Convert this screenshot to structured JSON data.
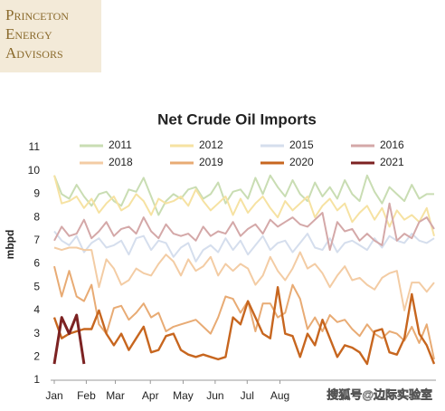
{
  "logo": {
    "lines": [
      "Princeton",
      "Energy",
      "Advisors"
    ]
  },
  "watermark": "搜狐号@边际实验室",
  "chart_data": {
    "type": "line",
    "title": "Net Crude Oil Imports",
    "y_label": "mbpd",
    "x": [
      1,
      2,
      3,
      4,
      5,
      6,
      7,
      8,
      9,
      10,
      11,
      12,
      13,
      14,
      15,
      16,
      17,
      18,
      19,
      20,
      21,
      22,
      23,
      24,
      25,
      26,
      27,
      28,
      29,
      30,
      31,
      32,
      33,
      34,
      35,
      36,
      37,
      38,
      39,
      40,
      41,
      42,
      43,
      44,
      45,
      46,
      47,
      48,
      49,
      50,
      51,
      52
    ],
    "xlim": [
      1,
      52
    ],
    "xticks": [
      {
        "value": 1,
        "label": "Jan"
      },
      {
        "value": 5.3,
        "label": "Feb"
      },
      {
        "value": 9.2,
        "label": "Mar"
      },
      {
        "value": 13.9,
        "label": "Apr"
      },
      {
        "value": 18.3,
        "label": "May"
      },
      {
        "value": 22.6,
        "label": "Jun"
      },
      {
        "value": 26.9,
        "label": "Jul"
      },
      {
        "value": 31.3,
        "label": "Aug"
      }
    ],
    "ylim": [
      1,
      11
    ],
    "yticks": [
      1,
      2,
      3,
      4,
      5,
      6,
      7,
      8,
      9,
      10,
      11
    ],
    "series": [
      {
        "name": "2011",
        "color": "#c9ddb3",
        "values": [
          9.8,
          9.0,
          8.8,
          9.4,
          8.9,
          8.5,
          9.0,
          9.1,
          8.7,
          8.5,
          9.2,
          9.1,
          9.7,
          8.9,
          8.1,
          8.7,
          9.0,
          8.8,
          9.2,
          9.3,
          8.8,
          9.0,
          9.5,
          8.6,
          9.1,
          9.2,
          8.8,
          9.7,
          9.0,
          9.8,
          9.3,
          8.9,
          9.6,
          9.0,
          8.7,
          9.5,
          8.9,
          9.3,
          8.8,
          9.6,
          9.0,
          8.7,
          9.8,
          9.1,
          8.6,
          9.3,
          9.0,
          8.7,
          9.4,
          8.8,
          9.0,
          9.0
        ]
      },
      {
        "name": "2012",
        "color": "#f6e2a2",
        "values": [
          9.8,
          8.6,
          8.7,
          8.9,
          8.4,
          8.8,
          8.2,
          8.6,
          8.9,
          8.3,
          8.5,
          9.0,
          8.7,
          8.1,
          8.8,
          8.6,
          8.7,
          8.9,
          8.5,
          9.2,
          8.7,
          8.3,
          8.6,
          8.9,
          8.1,
          8.8,
          8.2,
          8.6,
          8.9,
          8.4,
          8.0,
          8.7,
          8.3,
          8.6,
          8.9,
          8.0,
          8.5,
          8.8,
          8.3,
          8.6,
          7.8,
          8.2,
          8.5,
          7.9,
          8.4,
          7.6,
          8.3,
          7.9,
          8.1,
          7.8,
          8.4,
          7.2
        ]
      },
      {
        "name": "2015",
        "color": "#d5deed",
        "values": [
          7.4,
          7.0,
          6.8,
          7.2,
          6.5,
          6.9,
          7.1,
          6.7,
          6.8,
          7.0,
          6.4,
          7.1,
          7.2,
          6.6,
          7.0,
          6.9,
          6.3,
          6.7,
          6.9,
          6.1,
          6.6,
          6.8,
          6.5,
          7.1,
          6.6,
          7.0,
          6.4,
          6.8,
          7.2,
          6.6,
          6.9,
          7.0,
          6.5,
          6.9,
          7.3,
          6.7,
          6.6,
          7.1,
          6.5,
          6.9,
          7.0,
          6.8,
          6.6,
          7.1,
          6.7,
          7.2,
          7.0,
          6.9,
          7.3,
          7.0,
          6.9,
          7.1
        ]
      },
      {
        "name": "2016",
        "color": "#d4a8a8",
        "values": [
          7.0,
          7.6,
          7.2,
          7.3,
          7.9,
          7.1,
          7.4,
          7.8,
          7.2,
          7.5,
          7.6,
          7.3,
          8.0,
          7.4,
          7.1,
          7.7,
          7.3,
          7.2,
          7.3,
          7.0,
          7.6,
          7.2,
          7.4,
          7.3,
          7.8,
          7.2,
          7.5,
          7.7,
          7.3,
          7.9,
          7.6,
          7.8,
          8.0,
          7.7,
          7.6,
          7.9,
          8.2,
          6.6,
          7.8,
          7.4,
          7.5,
          7.0,
          7.3,
          7.0,
          6.8,
          8.6,
          7.0,
          7.3,
          7.1,
          7.8,
          8.0,
          7.5
        ]
      },
      {
        "name": "2018",
        "color": "#f3cca4",
        "values": [
          6.7,
          6.6,
          6.7,
          6.7,
          6.6,
          6.6,
          5.0,
          6.2,
          5.8,
          5.1,
          5.3,
          5.8,
          5.6,
          5.5,
          6.0,
          6.4,
          6.1,
          5.5,
          6.2,
          5.7,
          5.9,
          6.3,
          5.5,
          6.0,
          5.7,
          6.0,
          5.8,
          5.1,
          5.5,
          6.3,
          5.7,
          5.3,
          5.8,
          6.5,
          5.8,
          6.0,
          5.6,
          5.0,
          5.5,
          5.9,
          5.3,
          5.4,
          5.1,
          4.9,
          5.4,
          5.6,
          5.7,
          4.0,
          5.2,
          5.2,
          4.8,
          5.2
        ]
      },
      {
        "name": "2019",
        "color": "#e8ab74",
        "values": [
          5.9,
          4.6,
          5.7,
          4.6,
          4.4,
          5.1,
          3.4,
          3.0,
          4.1,
          4.2,
          3.6,
          3.9,
          4.3,
          3.7,
          3.9,
          3.1,
          3.3,
          3.4,
          3.5,
          3.6,
          3.3,
          3.0,
          3.7,
          4.6,
          4.5,
          3.9,
          4.4,
          3.1,
          4.3,
          4.3,
          3.7,
          3.9,
          5.1,
          4.5,
          3.2,
          3.7,
          3.1,
          3.8,
          3.5,
          3.6,
          3.2,
          2.9,
          3.4,
          3.0,
          2.8,
          3.1,
          3.0,
          2.7,
          3.3,
          2.6,
          3.4,
          1.9
        ]
      },
      {
        "name": "2020",
        "color": "#c7661f",
        "values": [
          3.7,
          2.8,
          3.0,
          3.1,
          3.2,
          3.2,
          4.0,
          3.0,
          2.5,
          3.0,
          2.3,
          2.8,
          3.3,
          2.2,
          2.3,
          2.9,
          3.0,
          2.3,
          2.1,
          2.0,
          2.1,
          2.0,
          1.9,
          2.0,
          3.7,
          3.4,
          4.4,
          3.7,
          3.0,
          2.8,
          5.0,
          3.0,
          2.9,
          2.0,
          3.0,
          2.5,
          3.6,
          2.8,
          2.0,
          2.5,
          2.4,
          2.2,
          1.7,
          3.1,
          3.2,
          2.2,
          2.1,
          2.8,
          4.7,
          3.0,
          2.5,
          1.7
        ]
      },
      {
        "name": "2021",
        "color": "#7c2222",
        "values": [
          1.7,
          3.7,
          3.0,
          3.8,
          1.7,
          null,
          null,
          null,
          null,
          null,
          null,
          null,
          null,
          null,
          null,
          null,
          null,
          null,
          null,
          null,
          null,
          null,
          null,
          null,
          null,
          null,
          null,
          null,
          null,
          null,
          null,
          null,
          null,
          null,
          null,
          null,
          null,
          null,
          null,
          null,
          null,
          null,
          null,
          null,
          null,
          null,
          null,
          null,
          null,
          null,
          null,
          null
        ]
      }
    ]
  }
}
